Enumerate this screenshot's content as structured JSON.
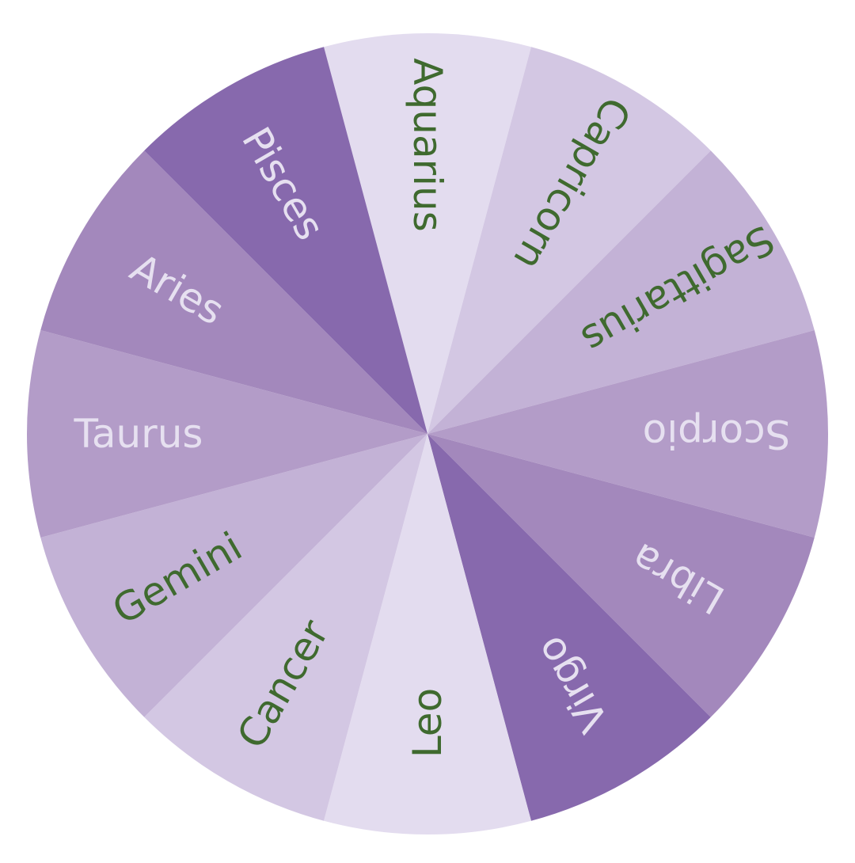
{
  "wheel": {
    "signs": [
      {
        "name": "Aquarius",
        "fill": "#e3dcef",
        "text_color": "#3f6a2f"
      },
      {
        "name": "Capricorn",
        "fill": "#d3c7e3",
        "text_color": "#3f6a2f"
      },
      {
        "name": "Sagittarius",
        "fill": "#c3b2d6",
        "text_color": "#3f6a2f"
      },
      {
        "name": "Scorpio",
        "fill": "#b39cc8",
        "text_color": "#e6e0f0"
      },
      {
        "name": "Libra",
        "fill": "#a388bc",
        "text_color": "#e6e0f0"
      },
      {
        "name": "Virgo",
        "fill": "#8769ad",
        "text_color": "#e6e0f0"
      },
      {
        "name": "Leo",
        "fill": "#e3dcef",
        "text_color": "#3f6a2f"
      },
      {
        "name": "Cancer",
        "fill": "#d3c7e3",
        "text_color": "#3f6a2f"
      },
      {
        "name": "Gemini",
        "fill": "#c3b2d6",
        "text_color": "#3f6a2f"
      },
      {
        "name": "Taurus",
        "fill": "#b39cc8",
        "text_color": "#e6e0f0"
      },
      {
        "name": "Aries",
        "fill": "#a388bc",
        "text_color": "#e6e0f0"
      },
      {
        "name": "Pisces",
        "fill": "#8769ad",
        "text_color": "#e6e0f0"
      }
    ]
  }
}
